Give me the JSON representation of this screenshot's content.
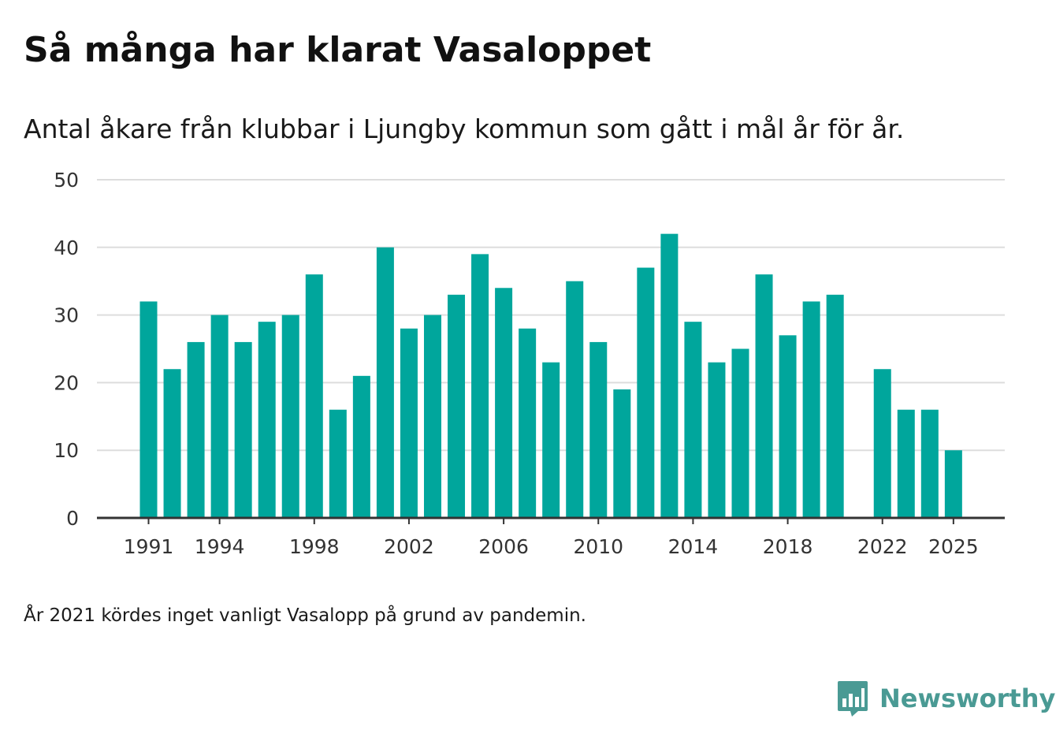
{
  "title": "Så många har klarat Vasaloppet",
  "subtitle": "Antal åkare från klubbar i Ljungby kommun som gått i mål år för år.",
  "footnote": "År 2021 kördes inget vanligt Vasalopp på grund av pandemin.",
  "brand": {
    "name": "Newsworthy",
    "icon": "newsworthy-logo-icon",
    "color": "#4a9a94"
  },
  "colors": {
    "bar": "#00a69c",
    "grid": "#dddddd",
    "axis": "#333333"
  },
  "chart_data": {
    "type": "bar",
    "title": "Så många har klarat Vasaloppet",
    "xlabel": "",
    "ylabel": "",
    "ylim": [
      0,
      50
    ],
    "yticks": [
      0,
      10,
      20,
      30,
      40,
      50
    ],
    "xticks": [
      "1991",
      "1994",
      "1998",
      "2002",
      "2006",
      "2010",
      "2014",
      "2018",
      "2022",
      "2025"
    ],
    "grid": true,
    "legend": "none",
    "categories": [
      "1991",
      "1992",
      "1993",
      "1994",
      "1995",
      "1996",
      "1997",
      "1998",
      "1999",
      "2000",
      "2001",
      "2002",
      "2003",
      "2004",
      "2005",
      "2006",
      "2007",
      "2008",
      "2009",
      "2010",
      "2011",
      "2012",
      "2013",
      "2014",
      "2015",
      "2016",
      "2017",
      "2018",
      "2019",
      "2020",
      "2021",
      "2022",
      "2023",
      "2024",
      "2025"
    ],
    "values": [
      32,
      22,
      26,
      30,
      26,
      29,
      30,
      36,
      16,
      21,
      40,
      28,
      30,
      33,
      39,
      34,
      28,
      23,
      35,
      26,
      19,
      37,
      42,
      29,
      23,
      25,
      36,
      27,
      32,
      33,
      null,
      22,
      16,
      16,
      10
    ]
  }
}
